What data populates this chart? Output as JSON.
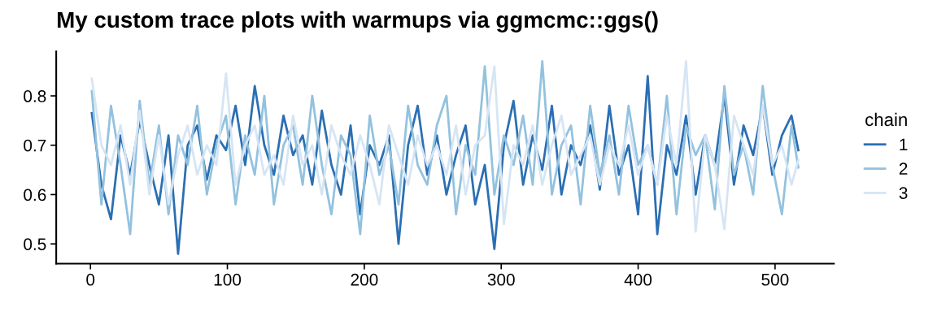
{
  "chart_data": {
    "type": "line",
    "title": "My custom trace plots with warmups via ggmcmc::ggs()",
    "legend_title": "chain",
    "legend": "right",
    "grid": false,
    "x": [
      1,
      8,
      15,
      22,
      29,
      36,
      43,
      50,
      57,
      64,
      71,
      78,
      85,
      92,
      99,
      106,
      113,
      120,
      127,
      134,
      141,
      148,
      155,
      162,
      169,
      176,
      183,
      190,
      197,
      204,
      211,
      218,
      225,
      232,
      239,
      246,
      253,
      260,
      267,
      274,
      281,
      288,
      295,
      302,
      309,
      316,
      323,
      330,
      337,
      344,
      351,
      358,
      365,
      372,
      379,
      386,
      393,
      400,
      407,
      414,
      421,
      428,
      435,
      442,
      449,
      456,
      463,
      470,
      477,
      484,
      491,
      498,
      505,
      512,
      517
    ],
    "series": [
      {
        "name": "1",
        "color": "#2b6fb3",
        "values": [
          0.765,
          0.62,
          0.55,
          0.72,
          0.64,
          0.75,
          0.66,
          0.58,
          0.72,
          0.48,
          0.7,
          0.74,
          0.63,
          0.72,
          0.69,
          0.78,
          0.66,
          0.82,
          0.7,
          0.64,
          0.76,
          0.68,
          0.72,
          0.62,
          0.77,
          0.66,
          0.6,
          0.74,
          0.56,
          0.7,
          0.66,
          0.72,
          0.5,
          0.7,
          0.78,
          0.64,
          0.72,
          0.6,
          0.68,
          0.74,
          0.58,
          0.66,
          0.49,
          0.7,
          0.79,
          0.62,
          0.72,
          0.65,
          0.78,
          0.6,
          0.7,
          0.66,
          0.74,
          0.61,
          0.78,
          0.64,
          0.7,
          0.56,
          0.84,
          0.52,
          0.7,
          0.64,
          0.76,
          0.6,
          0.72,
          0.66,
          0.8,
          0.62,
          0.74,
          0.68,
          0.78,
          0.64,
          0.72,
          0.76,
          0.69
        ]
      },
      {
        "name": "2",
        "color": "#93c2de",
        "values": [
          0.81,
          0.58,
          0.78,
          0.66,
          0.52,
          0.79,
          0.62,
          0.74,
          0.56,
          0.72,
          0.66,
          0.78,
          0.6,
          0.7,
          0.76,
          0.58,
          0.72,
          0.64,
          0.8,
          0.58,
          0.7,
          0.74,
          0.62,
          0.8,
          0.66,
          0.56,
          0.72,
          0.68,
          0.52,
          0.76,
          0.64,
          0.7,
          0.58,
          0.78,
          0.66,
          0.62,
          0.74,
          0.8,
          0.56,
          0.7,
          0.64,
          0.86,
          0.6,
          0.72,
          0.66,
          0.76,
          0.62,
          0.87,
          0.6,
          0.7,
          0.74,
          0.58,
          0.78,
          0.64,
          0.72,
          0.6,
          0.78,
          0.66,
          0.7,
          0.62,
          0.8,
          0.56,
          0.74,
          0.68,
          0.72,
          0.57,
          0.82,
          0.64,
          0.7,
          0.6,
          0.82,
          0.66,
          0.56,
          0.74,
          0.655
        ]
      },
      {
        "name": "3",
        "color": "#d6e5f4",
        "values": [
          0.835,
          0.7,
          0.66,
          0.74,
          0.62,
          0.77,
          0.6,
          0.72,
          0.58,
          0.68,
          0.74,
          0.64,
          0.7,
          0.66,
          0.845,
          0.62,
          0.7,
          0.74,
          0.64,
          0.68,
          0.62,
          0.76,
          0.66,
          0.7,
          0.6,
          0.74,
          0.68,
          0.64,
          0.72,
          0.66,
          0.58,
          0.74,
          0.68,
          0.62,
          0.72,
          0.66,
          0.7,
          0.64,
          0.74,
          0.6,
          0.7,
          0.72,
          0.86,
          0.54,
          0.7,
          0.66,
          0.74,
          0.62,
          0.7,
          0.76,
          0.64,
          0.68,
          0.72,
          0.62,
          0.7,
          0.66,
          0.74,
          0.64,
          0.7,
          0.62,
          0.76,
          0.66,
          0.87,
          0.525,
          0.72,
          0.66,
          0.53,
          0.76,
          0.7,
          0.64,
          0.78,
          0.66,
          0.7,
          0.62,
          0.67
        ]
      }
    ],
    "xlim": [
      -25,
      543
    ],
    "xticks": [
      0,
      100,
      200,
      300,
      400,
      500
    ],
    "ylim": [
      0.46,
      0.89
    ],
    "yticks": [
      0.5,
      0.6,
      0.7,
      0.8
    ]
  }
}
